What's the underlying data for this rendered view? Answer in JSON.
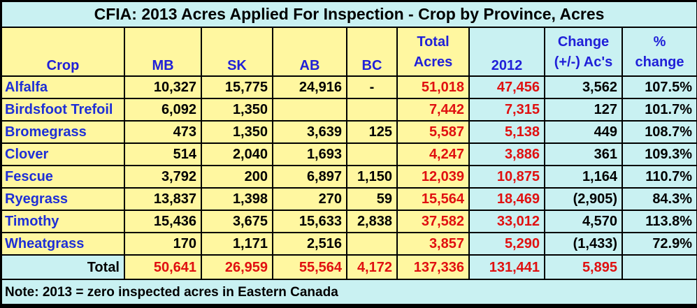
{
  "title": "CFIA:  2013 Acres Applied For Inspection - Crop by Province, Acres",
  "headers": {
    "crop": "Crop",
    "mb": "MB",
    "sk": "SK",
    "ab": "AB",
    "bc": "BC",
    "total_l1": "Total",
    "total_l2": "Acres",
    "y2012": "2012",
    "change_l1": "Change",
    "change_l2": "(+/-) Ac's",
    "pct_l1": "%",
    "pct_l2": "change"
  },
  "rows": [
    {
      "crop": "Alfalfa",
      "mb": "10,327",
      "sk": "15,775",
      "ab": "24,916",
      "bc": "-",
      "total": "51,018",
      "y2012": "47,456",
      "change": "3,562",
      "pct": "107.5%"
    },
    {
      "crop": "Birdsfoot Trefoil",
      "mb": "6,092",
      "sk": "1,350",
      "ab": "",
      "bc": "",
      "total": "7,442",
      "y2012": "7,315",
      "change": "127",
      "pct": "101.7%"
    },
    {
      "crop": "Bromegrass",
      "mb": "473",
      "sk": "1,350",
      "ab": "3,639",
      "bc": "125",
      "total": "5,587",
      "y2012": "5,138",
      "change": "449",
      "pct": "108.7%"
    },
    {
      "crop": "Clover",
      "mb": "514",
      "sk": "2,040",
      "ab": "1,693",
      "bc": "",
      "total": "4,247",
      "y2012": "3,886",
      "change": "361",
      "pct": "109.3%"
    },
    {
      "crop": "Fescue",
      "mb": "3,792",
      "sk": "200",
      "ab": "6,897",
      "bc": "1,150",
      "total": "12,039",
      "y2012": "10,875",
      "change": "1,164",
      "pct": "110.7%"
    },
    {
      "crop": "Ryegrass",
      "mb": "13,837",
      "sk": "1,398",
      "ab": "270",
      "bc": "59",
      "total": "15,564",
      "y2012": "18,469",
      "change": "(2,905)",
      "pct": "84.3%"
    },
    {
      "crop": "Timothy",
      "mb": "15,436",
      "sk": "3,675",
      "ab": "15,633",
      "bc": "2,838",
      "total": "37,582",
      "y2012": "33,012",
      "change": "4,570",
      "pct": "113.8%"
    },
    {
      "crop": "Wheatgrass",
      "mb": "170",
      "sk": "1,171",
      "ab": "2,516",
      "bc": "",
      "total": "3,857",
      "y2012": "5,290",
      "change": "(1,433)",
      "pct": "72.9%"
    }
  ],
  "total": {
    "label": "Total",
    "mb": "50,641",
    "sk": "26,959",
    "ab": "55,564",
    "bc": "4,172",
    "total": "137,336",
    "y2012": "131,441",
    "change": "5,895",
    "pct": ""
  },
  "note": "Note: 2013 = zero inspected acres in Eastern Canada"
}
